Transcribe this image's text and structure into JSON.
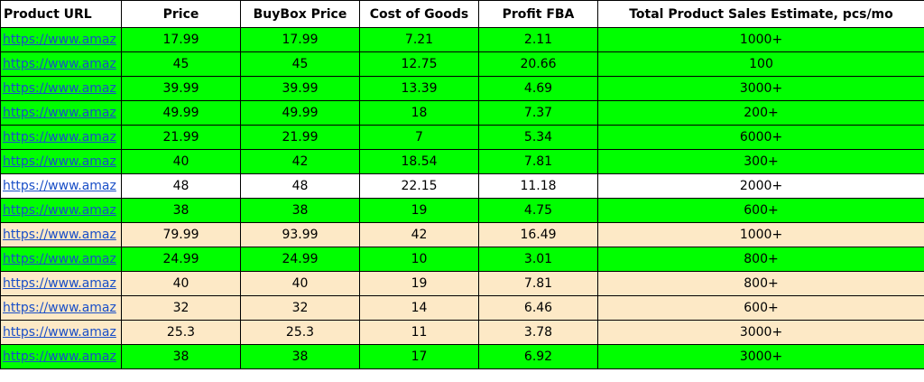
{
  "headers": {
    "url": "Product URL",
    "price": "Price",
    "buybox": "BuyBox Price",
    "cog": "Cost of Goods",
    "fba": "Profit FBA",
    "total": "Total Product Sales Estimate, pcs/mo"
  },
  "colors": {
    "green": "#00ff00",
    "white": "#ffffff",
    "beige": "#fde9c6",
    "link": "#1a4fc7"
  },
  "rows": [
    {
      "url": "https://www.amaz",
      "price": "17.99",
      "buybox": "17.99",
      "cog": "7.21",
      "fba": "2.11",
      "total": "1000+",
      "color": "green"
    },
    {
      "url": "https://www.amaz",
      "price": "45",
      "buybox": "45",
      "cog": "12.75",
      "fba": "20.66",
      "total": "100",
      "color": "green"
    },
    {
      "url": "https://www.amaz",
      "price": "39.99",
      "buybox": "39.99",
      "cog": "13.39",
      "fba": "4.69",
      "total": "3000+",
      "color": "green"
    },
    {
      "url": "https://www.amaz",
      "price": "49.99",
      "buybox": "49.99",
      "cog": "18",
      "fba": "7.37",
      "total": "200+",
      "color": "green"
    },
    {
      "url": "https://www.amaz",
      "price": "21.99",
      "buybox": "21.99",
      "cog": "7",
      "fba": "5.34",
      "total": "6000+",
      "color": "green"
    },
    {
      "url": "https://www.amaz",
      "price": "40",
      "buybox": "42",
      "cog": "18.54",
      "fba": "7.81",
      "total": "300+",
      "color": "green"
    },
    {
      "url": "https://www.amaz",
      "price": "48",
      "buybox": "48",
      "cog": "22.15",
      "fba": "11.18",
      "total": "2000+",
      "color": "white"
    },
    {
      "url": "https://www.amaz",
      "price": "38",
      "buybox": "38",
      "cog": "19",
      "fba": "4.75",
      "total": "600+",
      "color": "green"
    },
    {
      "url": "https://www.amaz",
      "price": "79.99",
      "buybox": "93.99",
      "cog": "42",
      "fba": "16.49",
      "total": "1000+",
      "color": "beige"
    },
    {
      "url": "https://www.amaz",
      "price": "24.99",
      "buybox": "24.99",
      "cog": "10",
      "fba": "3.01",
      "total": "800+",
      "color": "green"
    },
    {
      "url": "https://www.amaz",
      "price": "40",
      "buybox": "40",
      "cog": "19",
      "fba": "7.81",
      "total": "800+",
      "color": "beige"
    },
    {
      "url": "https://www.amaz",
      "price": "32",
      "buybox": "32",
      "cog": "14",
      "fba": "6.46",
      "total": "600+",
      "color": "beige"
    },
    {
      "url": "https://www.amaz",
      "price": "25.3",
      "buybox": "25.3",
      "cog": "11",
      "fba": "3.78",
      "total": "3000+",
      "color": "beige"
    },
    {
      "url": "https://www.amaz",
      "price": "38",
      "buybox": "38",
      "cog": "17",
      "fba": "6.92",
      "total": "3000+",
      "color": "green"
    }
  ]
}
